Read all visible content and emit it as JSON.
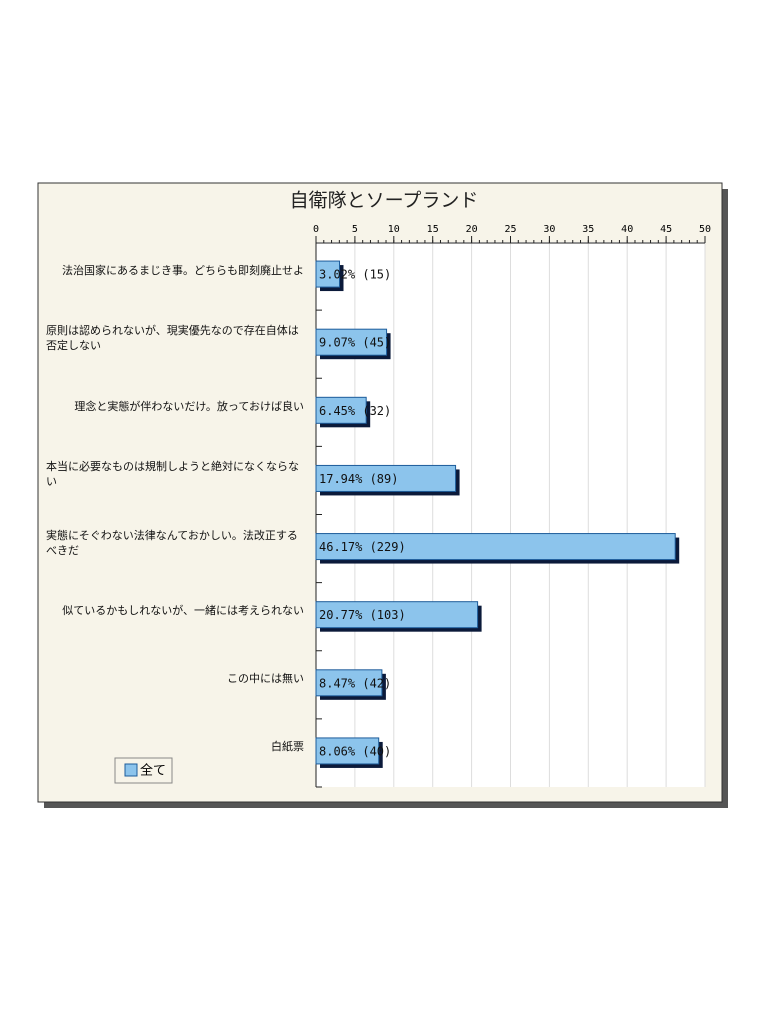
{
  "chart_data": {
    "type": "bar",
    "orientation": "horizontal",
    "title": "自衛隊とソープランド",
    "categories": [
      "法治国家にあるまじき事。どちらも即刻廃止せよ",
      "原則は認められないが、現実優先なので存在自体は否定しない",
      "理念と実態が伴わないだけ。放っておけば良い",
      "本当に必要なものは規制しようと絶対になくならない",
      "実態にそぐわない法律なんておかしい。法改正するべきだ",
      "似ているかもしれないが、一緒には考えられない",
      "この中には無い",
      "白紙票"
    ],
    "series": [
      {
        "name": "全て",
        "color": "#8cc4ec",
        "values": [
          3.02,
          9.07,
          6.45,
          17.94,
          46.17,
          20.77,
          8.47,
          8.06
        ]
      }
    ],
    "value_labels": [
      "3.02% (15)",
      "9.07% (45)",
      "6.45% (32)",
      "17.94% (89)",
      "46.17% (229)",
      "20.77% (103)",
      "8.47% (42)",
      "8.06% (40)"
    ],
    "xlim": [
      0,
      50
    ],
    "xticks": [
      0,
      5,
      10,
      15,
      20,
      25,
      30,
      35,
      40,
      45,
      50
    ],
    "grid": true
  }
}
